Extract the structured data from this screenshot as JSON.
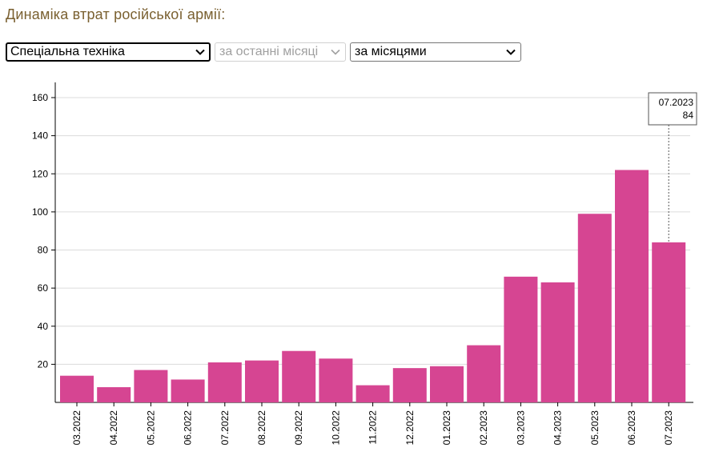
{
  "title": "Динаміка втрат російської армії:",
  "controls": {
    "category": "Спеціальна техніка",
    "period": "за останні місяці",
    "grouping": "за місяцями"
  },
  "colors": {
    "bar": "#d64592",
    "grid": "#dcdcdc",
    "title": "#7a6030"
  },
  "tooltip": {
    "label": "07.2023",
    "value": "84"
  },
  "chart_data": {
    "type": "bar",
    "categories": [
      "03.2022",
      "04.2022",
      "05.2022",
      "06.2022",
      "07.2022",
      "08.2022",
      "09.2022",
      "10.2022",
      "11.2022",
      "12.2022",
      "01.2023",
      "02.2023",
      "03.2023",
      "04.2023",
      "05.2023",
      "06.2023",
      "07.2023"
    ],
    "values": [
      14,
      8,
      17,
      12,
      21,
      22,
      27,
      23,
      9,
      18,
      19,
      30,
      66,
      63,
      99,
      122,
      84
    ],
    "yticks": [
      20,
      40,
      60,
      80,
      100,
      120,
      140,
      160
    ],
    "ylim": [
      0,
      168
    ],
    "grid": true,
    "xlabel": "",
    "ylabel": ""
  }
}
